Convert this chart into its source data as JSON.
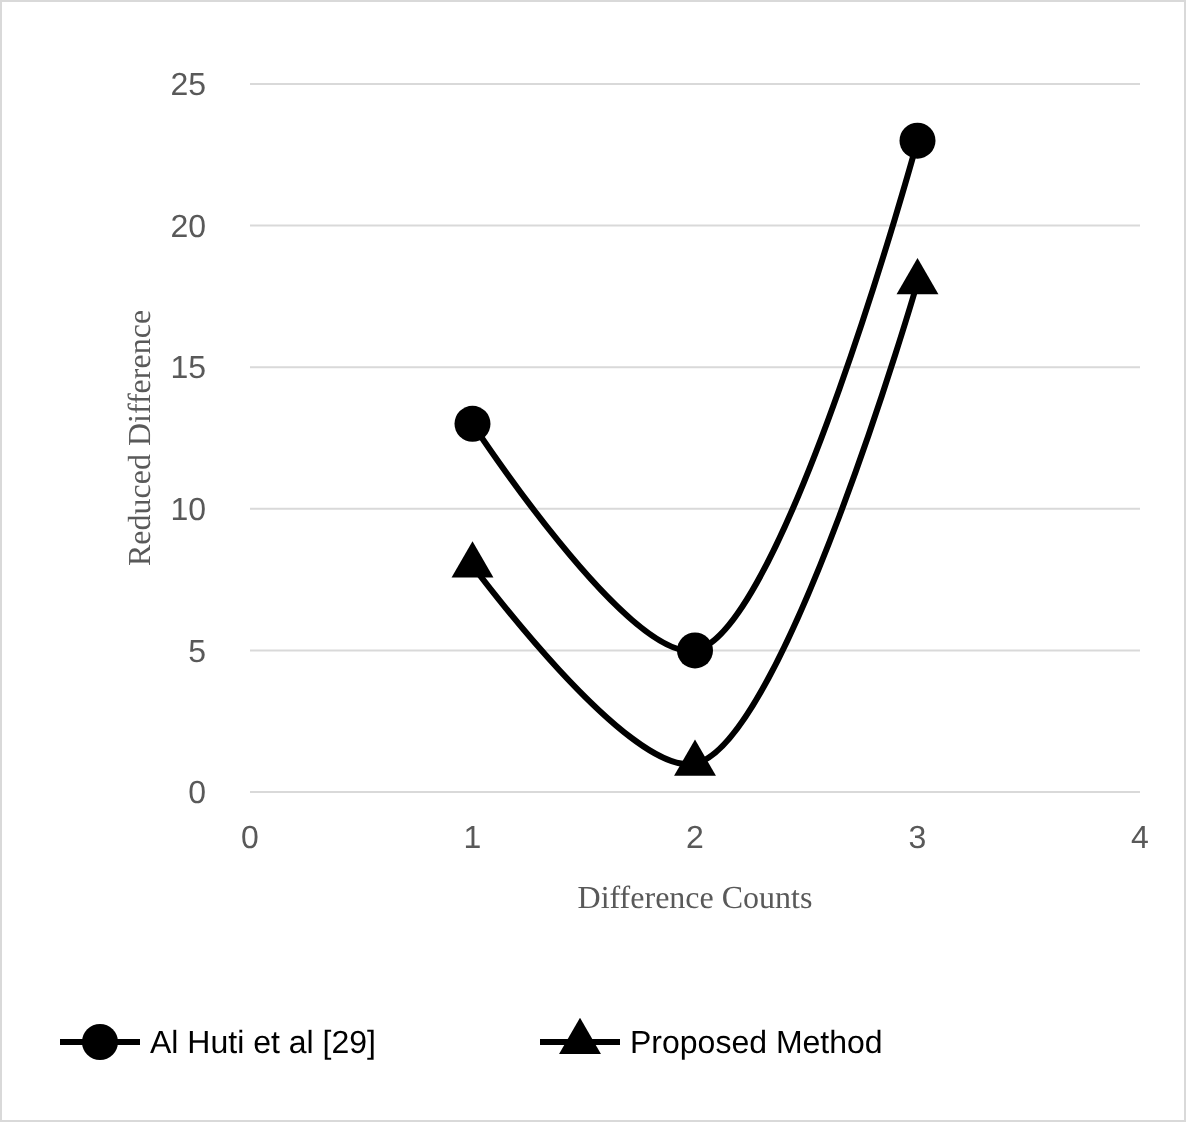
{
  "chart_data": {
    "type": "line",
    "xlabel": "Difference Counts",
    "ylabel": "Reduced Difference",
    "x": [
      1,
      2,
      3
    ],
    "series": [
      {
        "name": "Al Huti et al [29]",
        "color": "#000000",
        "values": [
          13,
          5,
          23
        ],
        "marker": "circle"
      },
      {
        "name": "Proposed Method",
        "color": "#000000",
        "values": [
          8,
          1,
          18
        ],
        "marker": "triangle"
      }
    ],
    "xlim": [
      0,
      4
    ],
    "xticks": [
      0,
      1,
      2,
      3,
      4
    ],
    "ylim": [
      0,
      25
    ],
    "yticks": [
      0,
      5,
      10,
      15,
      20,
      25
    ],
    "grid": "y",
    "legend": "bottom",
    "line_style": "solid"
  }
}
